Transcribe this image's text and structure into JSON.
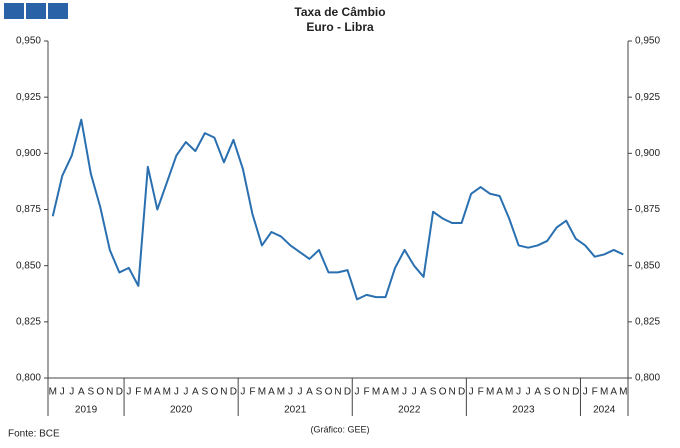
{
  "chart_data": {
    "type": "line",
    "title": "Taxa de Câmbio",
    "subtitle": "Euro - Libra",
    "source": "Fonte: BCE",
    "credit": "(Gráfico: GEE)",
    "groups": [
      {
        "label": "2019",
        "categories": [
          "M",
          "J",
          "J",
          "A",
          "S",
          "O",
          "N",
          "D"
        ]
      },
      {
        "label": "2020",
        "categories": [
          "J",
          "F",
          "M",
          "A",
          "M",
          "J",
          "J",
          "A",
          "S",
          "O",
          "N",
          "D"
        ]
      },
      {
        "label": "2021",
        "categories": [
          "J",
          "F",
          "M",
          "A",
          "M",
          "J",
          "J",
          "A",
          "S",
          "O",
          "N",
          "D"
        ]
      },
      {
        "label": "2022",
        "categories": [
          "J",
          "F",
          "M",
          "A",
          "M",
          "J",
          "J",
          "A",
          "S",
          "O",
          "N",
          "D"
        ]
      },
      {
        "label": "2023",
        "categories": [
          "J",
          "F",
          "M",
          "A",
          "M",
          "J",
          "J",
          "A",
          "S",
          "O",
          "N",
          "D"
        ]
      },
      {
        "label": "2024",
        "categories": [
          "J",
          "F",
          "M",
          "A",
          "M"
        ]
      }
    ],
    "color": "#2a70b0",
    "values": [
      0.872,
      0.89,
      0.899,
      0.915,
      0.891,
      0.876,
      0.857,
      0.847,
      0.849,
      0.841,
      0.894,
      0.875,
      0.887,
      0.899,
      0.905,
      0.901,
      0.909,
      0.907,
      0.896,
      0.906,
      0.893,
      0.873,
      0.859,
      0.865,
      0.863,
      0.859,
      0.856,
      0.853,
      0.857,
      0.847,
      0.847,
      0.848,
      0.835,
      0.837,
      0.836,
      0.836,
      0.849,
      0.857,
      0.85,
      0.845,
      0.874,
      0.871,
      0.869,
      0.869,
      0.882,
      0.885,
      0.882,
      0.881,
      0.871,
      0.859,
      0.858,
      0.859,
      0.861,
      0.867,
      0.87,
      0.862,
      0.859,
      0.854,
      0.855,
      0.857,
      0.855
    ],
    "ylim": [
      0.8,
      0.95
    ],
    "yticks": [
      {
        "value": 0.8,
        "label": "0,800"
      },
      {
        "value": 0.825,
        "label": "0,825"
      },
      {
        "value": 0.85,
        "label": "0,850"
      },
      {
        "value": 0.875,
        "label": "0,875"
      },
      {
        "value": 0.9,
        "label": "0,900"
      },
      {
        "value": 0.925,
        "label": "0,925"
      },
      {
        "value": 0.95,
        "label": "0,950"
      }
    ]
  }
}
